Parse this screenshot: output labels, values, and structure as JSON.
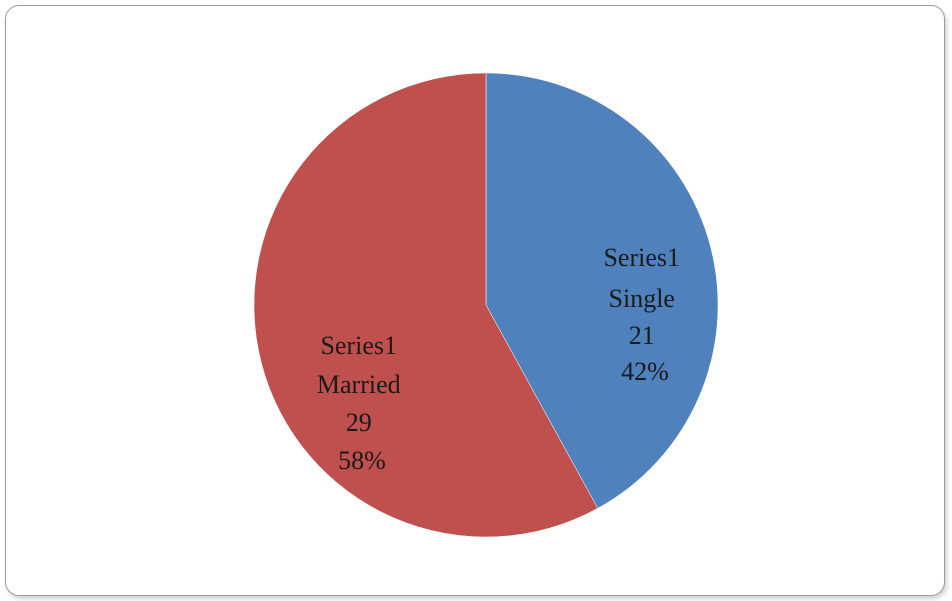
{
  "chart_data": {
    "type": "pie",
    "series": [
      {
        "name": "Series1",
        "categories": [
          "Single",
          "Married"
        ],
        "values": [
          21,
          29
        ],
        "percents": [
          "42%",
          "58%"
        ],
        "colors": [
          "#4f81bd",
          "#c0504d"
        ]
      }
    ],
    "data_labels": [
      {
        "series": "Series1",
        "category": "Single",
        "value": "21",
        "percent": "42%"
      },
      {
        "series": "Series1",
        "category": "Married",
        "value": "29",
        "percent": "58%"
      }
    ],
    "start_angle_deg": 0,
    "direction": "clockwise",
    "legend": "none"
  }
}
